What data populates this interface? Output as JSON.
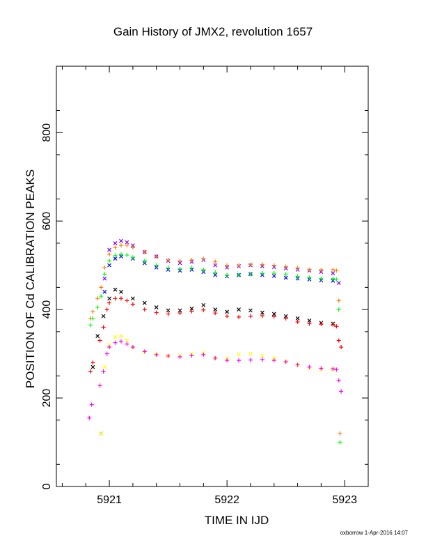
{
  "chart_data": {
    "type": "scatter",
    "title": "Gain History of JMX2, revolution 1657",
    "xlabel": "TIME IN IJD",
    "ylabel": "POSITION OF Cd CALIBRATION PEAKS",
    "xlim": [
      5920.55,
      5923.2
    ],
    "ylim": [
      0,
      950
    ],
    "x_ticks": [
      5921,
      5922,
      5923
    ],
    "x_tick_labels": [
      "5921",
      "5922",
      "5923"
    ],
    "y_ticks": [
      0,
      200,
      400,
      600,
      800
    ],
    "y_tick_labels": [
      "0",
      "200",
      "400",
      "600",
      "800"
    ],
    "grid": false,
    "legend": "none",
    "series": [
      {
        "marker": "x",
        "color": "#7f00ff",
        "x": [
          5920.93,
          5920.96,
          5921.0,
          5921.05,
          5921.1,
          5921.15,
          5921.2,
          5921.3,
          5921.4,
          5921.5,
          5921.6,
          5921.7,
          5921.8,
          5921.9,
          5922.0,
          5922.1,
          5922.2,
          5922.3,
          5922.4,
          5922.5,
          5922.6,
          5922.7,
          5922.8,
          5922.9,
          5922.95
        ],
        "y": [
          120,
          470,
          535,
          550,
          555,
          552,
          545,
          530,
          520,
          510,
          505,
          508,
          512,
          500,
          495,
          498,
          500,
          498,
          496,
          493,
          490,
          488,
          485,
          482,
          460
        ]
      },
      {
        "marker": "x",
        "color": "#0000ff",
        "x": [
          5920.96,
          5921.0,
          5921.05,
          5921.1,
          5921.2,
          5921.3,
          5921.4,
          5921.5,
          5921.6,
          5921.7,
          5921.8,
          5921.9,
          5922.0,
          5922.1,
          5922.2,
          5922.3,
          5922.4,
          5922.5,
          5922.6,
          5922.7,
          5922.8,
          5922.9
        ],
        "y": [
          440,
          500,
          515,
          520,
          515,
          505,
          495,
          490,
          488,
          490,
          485,
          478,
          475,
          478,
          480,
          478,
          476,
          472,
          470,
          468,
          466,
          465
        ]
      },
      {
        "marker": "+",
        "color": "#ff7f00",
        "x": [
          5920.84,
          5920.86,
          5920.9,
          5920.93,
          5920.96,
          5921.0,
          5921.05,
          5921.1,
          5921.15,
          5921.2,
          5921.3,
          5921.4,
          5921.5,
          5921.6,
          5921.7,
          5921.8,
          5921.9,
          5922.0,
          5922.1,
          5922.2,
          5922.3,
          5922.4,
          5922.5,
          5922.6,
          5922.7,
          5922.8,
          5922.9,
          5922.93,
          5922.95,
          5922.96
        ],
        "y": [
          380,
          395,
          425,
          450,
          495,
          525,
          540,
          545,
          545,
          540,
          530,
          520,
          512,
          510,
          512,
          515,
          508,
          500,
          500,
          502,
          502,
          500,
          497,
          494,
          490,
          490,
          490,
          488,
          420,
          120
        ]
      },
      {
        "marker": "+",
        "color": "#00ff00",
        "x": [
          5920.84,
          5920.86,
          5920.9,
          5920.93,
          5920.96,
          5921.0,
          5921.05,
          5921.1,
          5921.15,
          5921.2,
          5921.3,
          5921.4,
          5921.5,
          5921.6,
          5921.7,
          5921.8,
          5921.9,
          5922.0,
          5922.1,
          5922.2,
          5922.3,
          5922.4,
          5922.5,
          5922.6,
          5922.7,
          5922.8,
          5922.9,
          5922.93,
          5922.95,
          5922.96
        ],
        "y": [
          365,
          380,
          405,
          430,
          480,
          510,
          522,
          525,
          523,
          518,
          510,
          500,
          494,
          492,
          494,
          490,
          484,
          478,
          478,
          480,
          482,
          482,
          480,
          475,
          472,
          470,
          470,
          468,
          400,
          100
        ]
      },
      {
        "marker": "x",
        "color": "#000000",
        "x": [
          5920.86,
          5920.9,
          5920.95,
          5921.0,
          5921.05,
          5921.1,
          5921.2,
          5921.3,
          5921.4,
          5921.5,
          5921.6,
          5921.7,
          5921.8,
          5921.9,
          5922.0,
          5922.1,
          5922.2,
          5922.3,
          5922.4,
          5922.5,
          5922.6,
          5922.7,
          5922.8,
          5922.9
        ],
        "y": [
          270,
          340,
          385,
          425,
          445,
          440,
          425,
          415,
          405,
          398,
          398,
          402,
          410,
          400,
          395,
          400,
          398,
          393,
          390,
          385,
          380,
          375,
          370,
          368
        ]
      },
      {
        "marker": "+",
        "color": "#ff0000",
        "x": [
          5920.84,
          5920.86,
          5920.92,
          5920.95,
          5920.98,
          5921.0,
          5921.05,
          5921.1,
          5921.15,
          5921.2,
          5921.3,
          5921.4,
          5921.5,
          5921.6,
          5921.7,
          5921.8,
          5921.9,
          5922.0,
          5922.1,
          5922.2,
          5922.3,
          5922.4,
          5922.5,
          5922.6,
          5922.7,
          5922.8,
          5922.9,
          5922.93,
          5922.95,
          5922.97
        ],
        "y": [
          260,
          280,
          330,
          360,
          400,
          415,
          425,
          425,
          420,
          412,
          400,
          393,
          390,
          392,
          396,
          399,
          392,
          385,
          383,
          385,
          386,
          384,
          380,
          372,
          368,
          367,
          366,
          362,
          330,
          315
        ]
      },
      {
        "marker": "x",
        "color": "#ffff00",
        "x": [
          5920.93,
          5920.96,
          5921.0,
          5921.05,
          5921.1,
          5921.15,
          5921.2,
          5921.3,
          5921.4,
          5921.5,
          5921.6,
          5921.7,
          5921.8,
          5921.9,
          5922.0,
          5922.1,
          5922.2,
          5922.3,
          5922.4,
          5922.5,
          5922.6,
          5922.7,
          5922.8,
          5922.9
        ],
        "y": [
          120,
          270,
          320,
          338,
          340,
          330,
          315,
          305,
          298,
          295,
          296,
          300,
          302,
          290,
          290,
          298,
          300,
          295,
          290,
          283,
          275,
          268,
          265,
          265
        ]
      },
      {
        "marker": "+",
        "color": "#ff00ff",
        "x": [
          5920.83,
          5920.85,
          5920.92,
          5920.95,
          5920.98,
          5921.0,
          5921.05,
          5921.1,
          5921.15,
          5921.2,
          5921.3,
          5921.4,
          5921.5,
          5921.6,
          5921.7,
          5921.8,
          5921.9,
          5922.0,
          5922.1,
          5922.2,
          5922.3,
          5922.4,
          5922.5,
          5922.6,
          5922.7,
          5922.8,
          5922.9,
          5922.93,
          5922.95,
          5922.97
        ],
        "y": [
          155,
          185,
          228,
          260,
          300,
          315,
          325,
          328,
          322,
          315,
          305,
          298,
          295,
          293,
          296,
          298,
          290,
          285,
          285,
          286,
          287,
          285,
          282,
          275,
          270,
          267,
          266,
          264,
          240,
          215
        ]
      }
    ]
  },
  "credit": "oxborrow  1-Apr-2016 14:07"
}
